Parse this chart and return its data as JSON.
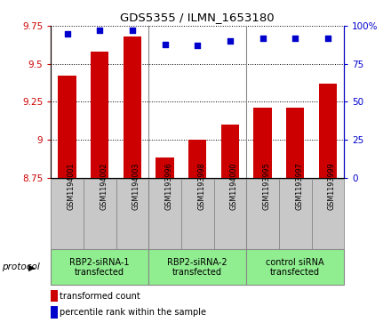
{
  "title": "GDS5355 / ILMN_1653180",
  "samples": [
    "GSM1194001",
    "GSM1194002",
    "GSM1194003",
    "GSM1193996",
    "GSM1193998",
    "GSM1194000",
    "GSM1193995",
    "GSM1193997",
    "GSM1193999"
  ],
  "transformed_count": [
    9.42,
    9.58,
    9.68,
    8.88,
    9.0,
    9.1,
    9.21,
    9.21,
    9.37
  ],
  "percentile_rank": [
    95,
    97,
    97,
    88,
    87,
    90,
    92,
    92,
    92
  ],
  "ylim": [
    8.75,
    9.75
  ],
  "yticks": [
    8.75,
    9.0,
    9.25,
    9.5,
    9.75
  ],
  "ytick_labels": [
    "8.75",
    "9",
    "9.25",
    "9.5",
    "9.75"
  ],
  "right_yticks": [
    0,
    25,
    50,
    75,
    100
  ],
  "right_ytick_labels": [
    "0",
    "25",
    "50",
    "75",
    "100%"
  ],
  "right_ylim": [
    0,
    100
  ],
  "bar_color": "#cc0000",
  "dot_color": "#0000cc",
  "dot_size": 18,
  "groups": [
    {
      "label": "RBP2-siRNA-1\ntransfected",
      "start": 0,
      "end": 3
    },
    {
      "label": "RBP2-siRNA-2\ntransfected",
      "start": 3,
      "end": 6
    },
    {
      "label": "control siRNA\ntransfected",
      "start": 6,
      "end": 9
    }
  ],
  "group_color": "#90ee90",
  "protocol_label": "protocol",
  "sample_bg_color": "#c8c8c8",
  "plot_bg_color": "#ffffff",
  "legend_red_label": "transformed count",
  "legend_blue_label": "percentile rank within the sample",
  "bar_width": 0.55
}
